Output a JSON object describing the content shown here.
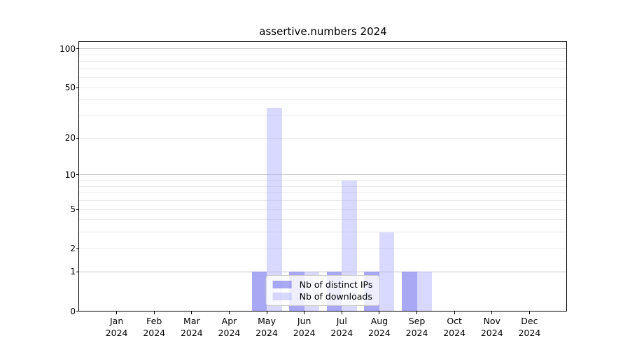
{
  "chart_data": {
    "type": "bar",
    "title": "assertive.numbers 2024",
    "categories": [
      "Jan",
      "Feb",
      "Mar",
      "Apr",
      "May",
      "Jun",
      "Jul",
      "Aug",
      "Sep",
      "Oct",
      "Nov",
      "Dec"
    ],
    "x_sublabel": "2024",
    "series": [
      {
        "key": "distinct-ips",
        "name": "Nb of distinct IPs",
        "color": "rgba(122,122,238,0.65)",
        "values": [
          0,
          0,
          0,
          0,
          1,
          1,
          1,
          1,
          1,
          0,
          0,
          0
        ]
      },
      {
        "key": "downloads",
        "name": "Nb of downloads",
        "color": "rgba(170,170,255,0.45)",
        "values": [
          0,
          0,
          0,
          0,
          35,
          1,
          9,
          3,
          1,
          0,
          0,
          0
        ]
      }
    ],
    "y_scale": "log1p",
    "y_ticks": [
      0,
      1,
      2,
      5,
      10,
      20,
      50,
      100
    ],
    "major_gridlines": [
      1,
      10,
      100
    ],
    "minor_gridlines": [
      2,
      3,
      4,
      5,
      6,
      7,
      8,
      9,
      20,
      30,
      40,
      50,
      60,
      70,
      80,
      90
    ],
    "ylim": [
      0,
      113.6
    ],
    "xlim": [
      -1,
      12
    ],
    "grid": true,
    "legend_position": "lower center"
  }
}
